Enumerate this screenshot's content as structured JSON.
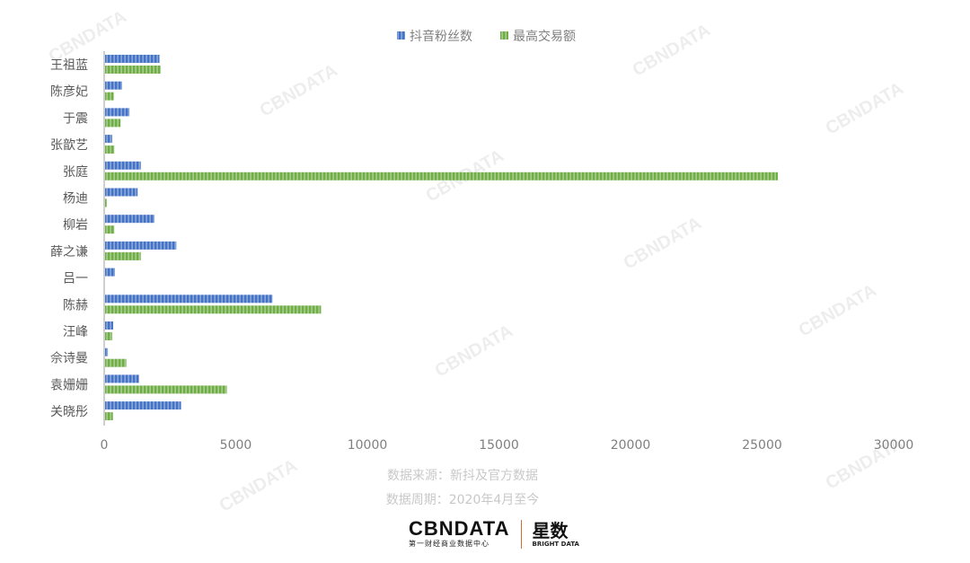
{
  "chart_data": {
    "type": "bar",
    "orientation": "horizontal",
    "categories": [
      "王祖蓝",
      "陈彦妃",
      "于震",
      "张歆艺",
      "张庭",
      "杨迪",
      "柳岩",
      "薛之谦",
      "吕一",
      "陈赫",
      "汪峰",
      "佘诗曼",
      "袁姗姗",
      "关晓彤"
    ],
    "series": [
      {
        "name": "抖音粉丝数",
        "color": "#4472c4",
        "values": [
          2100,
          680,
          960,
          300,
          1390,
          1270,
          1910,
          2740,
          410,
          6400,
          340,
          140,
          1320,
          2920
        ]
      },
      {
        "name": "最高交易额",
        "color": "#70ad47",
        "values": [
          2140,
          360,
          620,
          390,
          25600,
          100,
          390,
          1390,
          0,
          8240,
          300,
          840,
          4660,
          330
        ]
      }
    ],
    "xlim": [
      0,
      30000
    ],
    "xticks": [
      "0",
      "5000",
      "10000",
      "15000",
      "20000",
      "25000",
      "30000"
    ],
    "grid": false,
    "legend": "top"
  },
  "footer": {
    "source": "数据来源：新抖及官方数据",
    "period": "数据周期：2020年4月至今"
  },
  "logo": {
    "cbndata": "CBNDATA",
    "cbndata_sub": "第一财经商业数据中心",
    "xingshu": "星数",
    "xingshu_sub": "BRIGHT DATA"
  },
  "watermark": "CBNDATA"
}
